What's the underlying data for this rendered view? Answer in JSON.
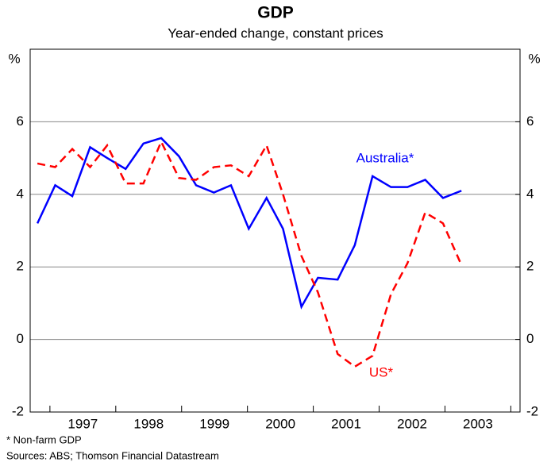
{
  "chart_data": {
    "type": "line",
    "title": "GDP",
    "subtitle": "Year-ended change, constant prices",
    "ylabel": "%",
    "y2label": "%",
    "x": [
      1996.81,
      1997.08,
      1997.34,
      1997.61,
      1997.87,
      1998.15,
      1998.42,
      1998.69,
      1998.96,
      1999.22,
      1999.49,
      1999.75,
      2000.02,
      2000.29,
      2000.54,
      2000.82,
      2001.07,
      2001.37,
      2001.63,
      2001.9,
      2002.18,
      2002.43,
      2002.7,
      2002.97,
      2003.25
    ],
    "series": [
      {
        "name": "Australia*",
        "color": "#0000ff",
        "dash": false,
        "values": [
          3.2,
          4.25,
          3.95,
          5.3,
          5.0,
          4.7,
          5.4,
          5.55,
          5.05,
          4.25,
          4.05,
          4.25,
          3.05,
          3.9,
          3.05,
          0.9,
          1.7,
          1.65,
          2.6,
          4.5,
          4.2,
          4.2,
          4.4,
          3.9,
          4.1
        ]
      },
      {
        "name": "US*",
        "color": "#ff0000",
        "dash": true,
        "values": [
          4.85,
          4.75,
          5.25,
          4.75,
          5.35,
          4.3,
          4.3,
          5.45,
          4.45,
          4.4,
          4.75,
          4.8,
          4.5,
          5.35,
          4.0,
          2.3,
          1.3,
          -0.4,
          -0.75,
          -0.45,
          1.25,
          2.1,
          3.5,
          3.2,
          2.05
        ]
      }
    ],
    "xlim": [
      1996.7,
      2004.14
    ],
    "xticks": [
      1997,
      1998,
      1999,
      2000,
      2001,
      2002,
      2003,
      2004
    ],
    "xtick_labels": [
      {
        "value": 1997.5,
        "label": "1997"
      },
      {
        "value": 1998.5,
        "label": "1998"
      },
      {
        "value": 1999.5,
        "label": "1999"
      },
      {
        "value": 2000.5,
        "label": "2000"
      },
      {
        "value": 2001.5,
        "label": "2001"
      },
      {
        "value": 2002.5,
        "label": "2002"
      },
      {
        "value": 2003.5,
        "label": "2003"
      }
    ],
    "ylim": [
      -2,
      8
    ],
    "yticks": [
      -2,
      0,
      2,
      4,
      6
    ],
    "y2lim": [
      -2,
      8
    ],
    "y2ticks": [
      -2,
      0,
      2,
      4,
      6
    ],
    "grid": true,
    "notes": [
      "* Non-farm GDP",
      "Sources: ABS; Thomson Financial Datastream"
    ]
  }
}
